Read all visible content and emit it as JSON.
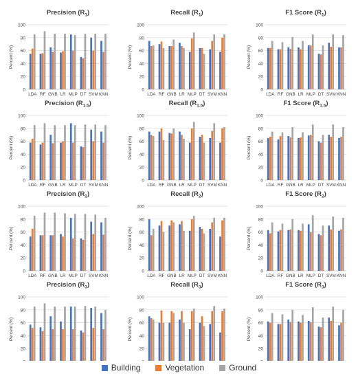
{
  "colors": {
    "building": "#4472C4",
    "vegetation": "#ED7D31",
    "ground": "#A5A5A5",
    "grid": "#d9d9d9",
    "axis": "#bfbfbf",
    "text": "#404040"
  },
  "chart_data": [
    {
      "type": "bar",
      "title": "Precision",
      "subscript": "1",
      "ylabel": "Percent (%)",
      "ylim": [
        0,
        100
      ],
      "yticks": [
        0,
        20,
        40,
        60,
        80,
        100
      ],
      "categories": [
        "LDA",
        "RF",
        "GNB",
        "LR",
        "MLP",
        "DT",
        "SVM",
        "KNN"
      ],
      "series": [
        {
          "name": "Building",
          "values": [
            55,
            55,
            65,
            57,
            85,
            50,
            80,
            75
          ]
        },
        {
          "name": "Vegetation",
          "values": [
            63,
            56,
            58,
            59,
            60,
            48,
            60,
            58
          ]
        },
        {
          "name": "Ground",
          "values": [
            85,
            90,
            86,
            86,
            84,
            86,
            86,
            86
          ]
        }
      ]
    },
    {
      "type": "bar",
      "title": "Recall",
      "subscript": "1",
      "ylabel": "Percent (%)",
      "ylim": [
        0,
        100
      ],
      "yticks": [
        0,
        20,
        40,
        60,
        80,
        100
      ],
      "categories": [
        "LDA",
        "RF",
        "GNB",
        "LR",
        "MLP",
        "DT",
        "SVM",
        "KNN"
      ],
      "series": [
        {
          "name": "Building",
          "values": [
            75,
            70,
            67,
            72,
            58,
            64,
            62,
            58
          ]
        },
        {
          "name": "Vegetation",
          "values": [
            67,
            74,
            67,
            67,
            79,
            64,
            75,
            80
          ]
        },
        {
          "name": "Ground",
          "values": [
            68,
            64,
            77,
            64,
            88,
            55,
            85,
            85
          ]
        }
      ]
    },
    {
      "type": "bar",
      "title": "F1 Score",
      "subscript": "1",
      "ylabel": "Percent (%)",
      "ylim": [
        0,
        100
      ],
      "yticks": [
        0,
        20,
        40,
        60,
        80,
        100
      ],
      "categories": [
        "LDA",
        "RF",
        "GNB",
        "LR",
        "MLP",
        "DT",
        "SVM",
        "KNN"
      ],
      "series": [
        {
          "name": "Building",
          "values": [
            64,
            62,
            65,
            65,
            68,
            55,
            72,
            65
          ]
        },
        {
          "name": "Vegetation",
          "values": [
            64,
            62,
            63,
            62,
            68,
            54,
            66,
            65
          ]
        },
        {
          "name": "Ground",
          "values": [
            75,
            73,
            81,
            75,
            85,
            68,
            85,
            84
          ]
        }
      ]
    },
    {
      "type": "bar",
      "title": "Precision",
      "subscript": "1.5",
      "ylabel": "Percent (%)",
      "ylim": [
        0,
        100
      ],
      "yticks": [
        0,
        20,
        40,
        60,
        80,
        100
      ],
      "categories": [
        "LDA",
        "RF",
        "GNB",
        "LR",
        "MLP",
        "DT",
        "SVM",
        "KNN"
      ],
      "series": [
        {
          "name": "Building",
          "values": [
            58,
            55,
            70,
            58,
            88,
            52,
            78,
            75
          ]
        },
        {
          "name": "Vegetation",
          "values": [
            64,
            58,
            57,
            60,
            58,
            51,
            60,
            58
          ]
        },
        {
          "name": "Ground",
          "values": [
            85,
            88,
            85,
            85,
            85,
            86,
            86,
            85
          ]
        }
      ]
    },
    {
      "type": "bar",
      "title": "Recall",
      "subscript": "1.5",
      "ylabel": "Percent (%)",
      "ylim": [
        0,
        100
      ],
      "yticks": [
        0,
        20,
        40,
        60,
        80,
        100
      ],
      "categories": [
        "LDA",
        "RF",
        "GNB",
        "LR",
        "MLP",
        "DT",
        "SVM",
        "KNN"
      ],
      "series": [
        {
          "name": "Building",
          "values": [
            75,
            75,
            73,
            75,
            58,
            67,
            65,
            58
          ]
        },
        {
          "name": "Vegetation",
          "values": [
            70,
            80,
            72,
            70,
            80,
            70,
            76,
            80
          ]
        },
        {
          "name": "Ground",
          "values": [
            68,
            62,
            80,
            64,
            90,
            58,
            88,
            82
          ]
        }
      ]
    },
    {
      "type": "bar",
      "title": "F1 Score",
      "subscript": "1.5",
      "ylabel": "Percent (%)",
      "ylim": [
        0,
        100
      ],
      "yticks": [
        0,
        20,
        40,
        60,
        80,
        100
      ],
      "categories": [
        "LDA",
        "RF",
        "GNB",
        "LR",
        "MLP",
        "DT",
        "SVM",
        "KNN"
      ],
      "series": [
        {
          "name": "Building",
          "values": [
            65,
            63,
            68,
            65,
            69,
            60,
            70,
            65
          ]
        },
        {
          "name": "Vegetation",
          "values": [
            67,
            68,
            66,
            66,
            70,
            58,
            67,
            67
          ]
        },
        {
          "name": "Ground",
          "values": [
            75,
            74,
            82,
            74,
            86,
            70,
            86,
            82
          ]
        }
      ]
    },
    {
      "type": "bar",
      "title": "Precision",
      "subscript": "2",
      "ylabel": "Percent (%)",
      "ylim": [
        0,
        100
      ],
      "yticks": [
        0,
        20,
        40,
        60,
        80,
        100
      ],
      "categories": [
        "LDA",
        "RF",
        "GNB",
        "LR",
        "MLP",
        "DT",
        "SVM",
        "KNN"
      ],
      "series": [
        {
          "name": "Building",
          "values": [
            53,
            55,
            55,
            57,
            82,
            50,
            76,
            75
          ]
        },
        {
          "name": "Vegetation",
          "values": [
            65,
            55,
            55,
            53,
            50,
            48,
            57,
            56
          ]
        },
        {
          "name": "Ground",
          "values": [
            85,
            90,
            90,
            89,
            88,
            88,
            87,
            82
          ]
        }
      ]
    },
    {
      "type": "bar",
      "title": "Recall",
      "subscript": "2",
      "ylabel": "Percent (%)",
      "ylim": [
        0,
        100
      ],
      "yticks": [
        0,
        20,
        40,
        60,
        80,
        100
      ],
      "categories": [
        "LDA",
        "RF",
        "GNB",
        "LR",
        "MLP",
        "DT",
        "SVM",
        "KNN"
      ],
      "series": [
        {
          "name": "Building",
          "values": [
            80,
            70,
            70,
            72,
            62,
            68,
            65,
            53
          ]
        },
        {
          "name": "Vegetation",
          "values": [
            55,
            77,
            78,
            77,
            80,
            65,
            75,
            78
          ]
        },
        {
          "name": "Ground",
          "values": [
            65,
            60,
            75,
            62,
            85,
            58,
            82,
            82
          ]
        }
      ]
    },
    {
      "type": "bar",
      "title": "F1 Score",
      "subscript": "2",
      "ylabel": "Percent (%)",
      "ylim": [
        0,
        100
      ],
      "yticks": [
        0,
        20,
        40,
        60,
        80,
        100
      ],
      "categories": [
        "LDA",
        "RF",
        "GNB",
        "LR",
        "MLP",
        "DT",
        "SVM",
        "KNN"
      ],
      "series": [
        {
          "name": "Building",
          "values": [
            63,
            61,
            63,
            63,
            72,
            57,
            70,
            62
          ]
        },
        {
          "name": "Vegetation",
          "values": [
            58,
            63,
            64,
            62,
            60,
            55,
            64,
            64
          ]
        },
        {
          "name": "Ground",
          "values": [
            75,
            73,
            80,
            73,
            86,
            70,
            84,
            82
          ]
        }
      ]
    },
    {
      "type": "bar",
      "title": "Precision",
      "subscript": "3",
      "ylabel": "Percent (%)",
      "ylim": [
        0,
        100
      ],
      "yticks": [
        0,
        20,
        40,
        60,
        80,
        100
      ],
      "categories": [
        "LDA",
        "RF",
        "GNB",
        "LR",
        "MLP",
        "DT",
        "SVM",
        "KNN"
      ],
      "series": [
        {
          "name": "Building",
          "values": [
            57,
            53,
            70,
            62,
            85,
            48,
            83,
            75
          ]
        },
        {
          "name": "Vegetation",
          "values": [
            52,
            47,
            50,
            50,
            50,
            45,
            52,
            50
          ]
        },
        {
          "name": "Ground",
          "values": [
            85,
            90,
            85,
            85,
            85,
            86,
            85,
            80
          ]
        }
      ]
    },
    {
      "type": "bar",
      "title": "Recall",
      "subscript": "3",
      "ylabel": "Percent (%)",
      "ylim": [
        0,
        100
      ],
      "yticks": [
        0,
        20,
        40,
        60,
        80,
        100
      ],
      "categories": [
        "LDA",
        "RF",
        "GNB",
        "LR",
        "MLP",
        "DT",
        "SVM",
        "KNN"
      ],
      "series": [
        {
          "name": "Building",
          "values": [
            70,
            60,
            60,
            65,
            50,
            60,
            58,
            45
          ]
        },
        {
          "name": "Vegetation",
          "values": [
            67,
            79,
            78,
            78,
            78,
            70,
            78,
            78
          ]
        },
        {
          "name": "Ground",
          "values": [
            65,
            60,
            75,
            60,
            82,
            55,
            86,
            82
          ]
        }
      ]
    },
    {
      "type": "bar",
      "title": "F1 Score",
      "subscript": "3",
      "ylabel": "Percent (%)",
      "ylim": [
        0,
        100
      ],
      "yticks": [
        0,
        20,
        40,
        60,
        80,
        100
      ],
      "categories": [
        "LDA",
        "RF",
        "GNB",
        "LR",
        "MLP",
        "DT",
        "SVM",
        "KNN"
      ],
      "series": [
        {
          "name": "Building",
          "values": [
            62,
            58,
            65,
            62,
            63,
            54,
            68,
            56
          ]
        },
        {
          "name": "Vegetation",
          "values": [
            60,
            58,
            61,
            60,
            61,
            53,
            63,
            60
          ]
        },
        {
          "name": "Ground",
          "values": [
            75,
            73,
            80,
            72,
            84,
            68,
            85,
            80
          ]
        }
      ]
    }
  ],
  "legend": [
    {
      "label": "Building",
      "color": "#4472C4"
    },
    {
      "label": "Vegetation",
      "color": "#ED7D31"
    },
    {
      "label": "Ground",
      "color": "#A5A5A5"
    }
  ]
}
